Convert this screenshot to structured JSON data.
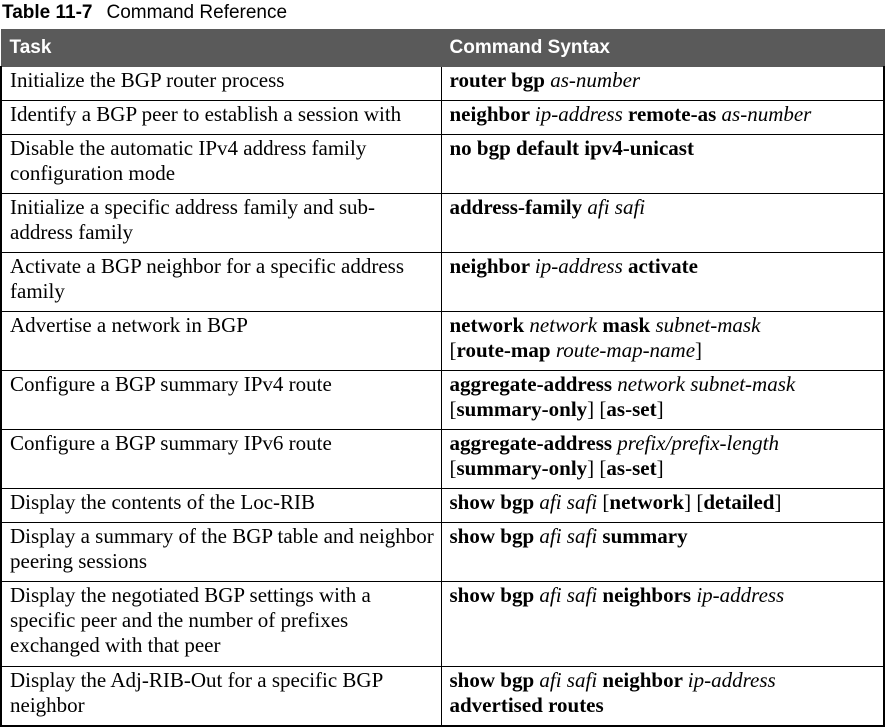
{
  "caption": {
    "number": "Table 11-7",
    "title": "Command Reference"
  },
  "columns": [
    "Task",
    "Command Syntax"
  ],
  "rows": [
    {
      "task": "Initialize the BGP router process",
      "lines": 1,
      "syntax": [
        [
          [
            "k",
            "router bgp "
          ],
          [
            "a",
            "as-number"
          ]
        ]
      ]
    },
    {
      "task": "Identify a BGP peer to establish a session with",
      "lines": 1,
      "syntax": [
        [
          [
            "k",
            "neighbor "
          ],
          [
            "a",
            "ip-address "
          ],
          [
            "k",
            "remote-as "
          ],
          [
            "a",
            "as-number"
          ]
        ]
      ]
    },
    {
      "task": "Disable the automatic IPv4 address family configuration mode",
      "lines": 2,
      "syntax": [
        [
          [
            "k",
            "no bgp default ipv4-unicast"
          ]
        ]
      ]
    },
    {
      "task": "Initialize a specific address family and sub-address family",
      "lines": 2,
      "syntax": [
        [
          [
            "k",
            "address-family "
          ],
          [
            "a",
            "afi safi"
          ]
        ]
      ]
    },
    {
      "task": "Activate a BGP neighbor for a specific address family",
      "lines": 2,
      "syntax": [
        [
          [
            "k",
            "neighbor "
          ],
          [
            "a",
            "ip-address "
          ],
          [
            "k",
            "activate"
          ]
        ]
      ]
    },
    {
      "task": "Advertise a network in BGP",
      "lines": 2,
      "syntax": [
        [
          [
            "k",
            "network "
          ],
          [
            "a",
            "network "
          ],
          [
            "k",
            "mask "
          ],
          [
            "a",
            "subnet-mask"
          ]
        ],
        [
          [
            "t",
            "["
          ],
          [
            "k",
            "route-map "
          ],
          [
            "a",
            "route-map-name"
          ],
          [
            "t",
            "]"
          ]
        ]
      ]
    },
    {
      "task": "Configure a BGP summary IPv4 route",
      "lines": 2,
      "syntax": [
        [
          [
            "k",
            "aggregate-address "
          ],
          [
            "a",
            "network subnet-mask"
          ]
        ],
        [
          [
            "t",
            "["
          ],
          [
            "k",
            "summary-only"
          ],
          [
            "t",
            "] ["
          ],
          [
            "k",
            "as-set"
          ],
          [
            "t",
            "]"
          ]
        ]
      ]
    },
    {
      "task": "Configure a BGP summary IPv6 route",
      "lines": 2,
      "syntax": [
        [
          [
            "k",
            "aggregate-address "
          ],
          [
            "a",
            "prefix/prefix-length"
          ]
        ],
        [
          [
            "t",
            "["
          ],
          [
            "k",
            "summary-only"
          ],
          [
            "t",
            "] ["
          ],
          [
            "k",
            "as-set"
          ],
          [
            "t",
            "]"
          ]
        ]
      ]
    },
    {
      "task": "Display the contents of the Loc-RIB",
      "lines": 1,
      "syntax": [
        [
          [
            "k",
            "show bgp "
          ],
          [
            "a",
            "afi safi "
          ],
          [
            "t",
            "["
          ],
          [
            "k",
            "network"
          ],
          [
            "t",
            "] ["
          ],
          [
            "k",
            "detailed"
          ],
          [
            "t",
            "]"
          ]
        ]
      ]
    },
    {
      "task": "Display a summary of the BGP table and neighbor peering sessions",
      "lines": 2,
      "syntax": [
        [
          [
            "k",
            "show bgp "
          ],
          [
            "a",
            "afi safi "
          ],
          [
            "k",
            "summary"
          ]
        ]
      ]
    },
    {
      "task": "Display the negotiated BGP settings with a specific peer and the number of prefixes exchanged with that peer",
      "lines": 3,
      "syntax": [
        [
          [
            "k",
            "show bgp "
          ],
          [
            "a",
            "afi safi "
          ],
          [
            "k",
            "neighbors "
          ],
          [
            "a",
            "ip-address"
          ]
        ]
      ]
    },
    {
      "task": "Display the Adj-RIB-Out for a specific BGP neighbor",
      "lines": 2,
      "syntax": [
        [
          [
            "k",
            "show bgp "
          ],
          [
            "a",
            "afi safi "
          ],
          [
            "k",
            "neighbor "
          ],
          [
            "a",
            "ip-address"
          ]
        ],
        [
          [
            "k",
            "advertised routes"
          ]
        ]
      ]
    }
  ]
}
